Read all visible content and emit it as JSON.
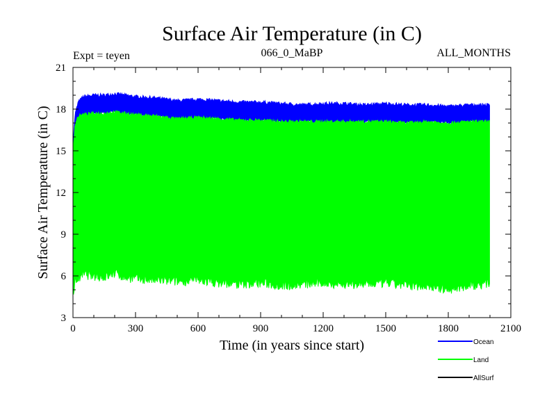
{
  "chart_data": {
    "type": "area",
    "title": "Surface Air Temperature (in C)",
    "subtitle_left": "Expt = teyen",
    "subtitle_center": "066_0_MaBP",
    "subtitle_right": "ALL_MONTHS",
    "xlabel": "Time (in years since start)",
    "ylabel": "Surface Air Temperature (in C)",
    "xlim": [
      0,
      2100
    ],
    "ylim": [
      3,
      21
    ],
    "xticks": [
      0,
      300,
      600,
      900,
      1200,
      1500,
      1800,
      2100
    ],
    "yticks": [
      3,
      6,
      9,
      12,
      15,
      18,
      21
    ],
    "x_minor_step": 100,
    "y_minor_step": 1,
    "series": [
      {
        "name": "Ocean",
        "color": "#0000ff",
        "x": [
          0,
          10,
          25,
          50,
          100,
          150,
          200,
          250,
          300,
          400,
          500,
          600,
          700,
          800,
          900,
          1000,
          1100,
          1200,
          1300,
          1400,
          1500,
          1600,
          1700,
          1800,
          1900,
          2000
        ],
        "upper": [
          15.5,
          17.6,
          18.5,
          18.9,
          19.0,
          19.0,
          19.1,
          19.0,
          18.9,
          18.8,
          18.6,
          18.7,
          18.6,
          18.5,
          18.5,
          18.4,
          18.3,
          18.4,
          18.4,
          18.3,
          18.4,
          18.3,
          18.3,
          18.2,
          18.3,
          18.3
        ],
        "lower": [
          15.0,
          16.9,
          17.5,
          17.6,
          17.7,
          17.7,
          17.8,
          17.7,
          17.6,
          17.5,
          17.3,
          17.4,
          17.3,
          17.2,
          17.2,
          17.1,
          17.1,
          17.1,
          17.1,
          17.1,
          17.1,
          17.0,
          17.1,
          17.0,
          17.1,
          17.1
        ]
      },
      {
        "name": "Land",
        "color": "#00ff00",
        "x": [
          0,
          10,
          25,
          50,
          100,
          150,
          200,
          250,
          300,
          400,
          500,
          600,
          700,
          800,
          900,
          1000,
          1100,
          1200,
          1300,
          1400,
          1500,
          1600,
          1700,
          1800,
          1900,
          2000
        ],
        "upper": [
          15.0,
          16.9,
          17.5,
          17.6,
          17.7,
          17.7,
          17.8,
          17.7,
          17.6,
          17.5,
          17.3,
          17.4,
          17.3,
          17.2,
          17.2,
          17.1,
          17.1,
          17.1,
          17.1,
          17.1,
          17.1,
          17.0,
          17.1,
          17.0,
          17.1,
          17.1
        ],
        "lower": [
          4.5,
          5.6,
          5.8,
          6.1,
          6.0,
          5.9,
          6.2,
          5.9,
          5.8,
          5.7,
          5.6,
          5.7,
          5.5,
          5.4,
          5.5,
          5.3,
          5.4,
          5.5,
          5.4,
          5.4,
          5.5,
          5.3,
          5.3,
          5.0,
          5.3,
          5.5
        ]
      },
      {
        "name": "AllSurf",
        "color": "#000000",
        "x": [],
        "upper": [],
        "lower": []
      }
    ]
  }
}
